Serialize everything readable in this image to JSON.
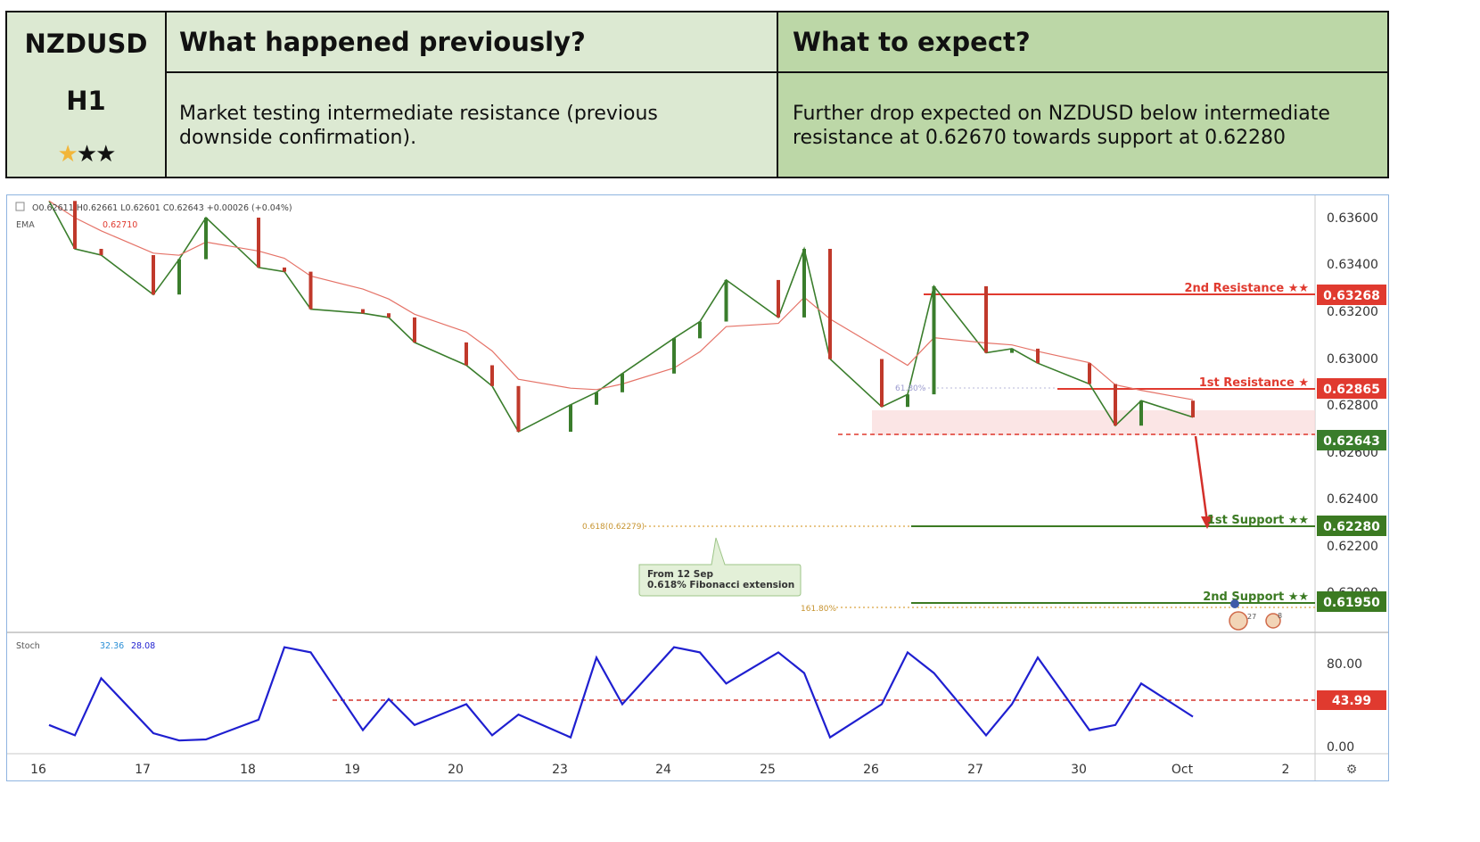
{
  "header": {
    "symbol": "NZDUSD",
    "timeframe": "H1",
    "rating": 3,
    "prev_title": "What happened previously?",
    "prev_text": "Market testing intermediate resistance (previous downside confirmation).",
    "expect_title": "What to expect?",
    "expect_text": "Further drop expected on NZDUSD below intermediate resistance at 0.62670 towards support at 0.62280"
  },
  "toolbar": {
    "ohlc": "O0.62611  H0.62661  L0.62601  C0.62643  +0.00026 (+0.04%)",
    "ema_label": "EMA",
    "ema_value": "0.62710",
    "stoch_label": "Stoch",
    "stoch_k": "32.36",
    "stoch_d": "28.08"
  },
  "colors": {
    "candle_up": "#3a7d2c",
    "candle_down": "#c0392b",
    "resistance": "#e03a2f",
    "support": "#3b7a22",
    "ema": "#e57368",
    "stoch": "#1f1fd0",
    "fib": "#d9a441"
  },
  "chart_data": {
    "type": "line",
    "title": "NZDUSD H1",
    "x_ticks": [
      "16",
      "17",
      "18",
      "19",
      "20",
      "23",
      "24",
      "25",
      "26",
      "27",
      "30",
      "Oct",
      "2"
    ],
    "y_ticks": [
      "0.63600",
      "0.63400",
      "0.63200",
      "0.63000",
      "0.62800",
      "0.62600",
      "0.62400",
      "0.62200",
      "0.62000"
    ],
    "ylim": [
      0.619,
      0.6369
    ],
    "series": [
      {
        "name": "",
        "x": [
          "16",
          "16",
          "16.5",
          "17",
          "17",
          "17.5",
          "18",
          "18",
          "18.5",
          "19",
          "19",
          "19.5",
          "20",
          "20",
          "20.5",
          "23",
          "23",
          "23.5",
          "24",
          "24",
          "24.5",
          "25",
          "25",
          "25.5",
          "26",
          "26",
          "26.5",
          "27",
          "27",
          "27.5",
          "30",
          "30",
          "30.5",
          "Oct"
        ],
        "values": [
          0.6368,
          0.6345,
          0.6342,
          0.6323,
          0.634,
          0.636,
          0.6336,
          0.6334,
          0.6316,
          0.6314,
          0.6312,
          0.63,
          0.6289,
          0.6279,
          0.6257,
          0.627,
          0.6276,
          0.6285,
          0.6302,
          0.631,
          0.633,
          0.6312,
          0.6345,
          0.6292,
          0.6269,
          0.6275,
          0.6327,
          0.6295,
          0.6297,
          0.629,
          0.628,
          0.626,
          0.6272,
          0.6264
        ]
      }
    ],
    "levels": [
      {
        "name": "2nd Resistance",
        "stars": "★★",
        "value": "0.63268"
      },
      {
        "name": "1st Resistance",
        "stars": "★",
        "value": "0.62865"
      },
      {
        "name": "Intermediate resistance",
        "value": "0.62670"
      },
      {
        "name": "Price",
        "value": "0.62643"
      },
      {
        "name": "1st Support",
        "stars": "★★",
        "value": "0.62280"
      },
      {
        "name": "2nd Support",
        "stars": "★★",
        "value": "0.61950"
      }
    ],
    "fib_labels": {
      "retracement": "61.80%",
      "extension_a": "0.618(0.62279)",
      "extension_b": "161.80%"
    },
    "annotation": {
      "line1": "From 12 Sep",
      "line2": "0.618% Fibonacci extension"
    },
    "events": [
      "27",
      "8"
    ],
    "stoch": {
      "y_ticks": [
        "80.00",
        "0.00"
      ],
      "level": "43.99",
      "x": [
        "16",
        "16",
        "16.5",
        "17",
        "17",
        "17.5",
        "18",
        "18",
        "18.5",
        "19",
        "19",
        "19.5",
        "20",
        "20",
        "20.5",
        "23",
        "23",
        "23.5",
        "24",
        "24",
        "24.5",
        "25",
        "25",
        "25.5",
        "26",
        "26",
        "26.5",
        "27",
        "27",
        "27.5",
        "30",
        "30",
        "30.5",
        "Oct"
      ],
      "values": [
        20,
        10,
        65,
        12,
        5,
        6,
        25,
        95,
        90,
        15,
        45,
        20,
        40,
        10,
        30,
        8,
        85,
        40,
        95,
        90,
        60,
        90,
        70,
        8,
        40,
        90,
        70,
        10,
        40,
        85,
        15,
        20,
        60,
        28
      ]
    }
  }
}
